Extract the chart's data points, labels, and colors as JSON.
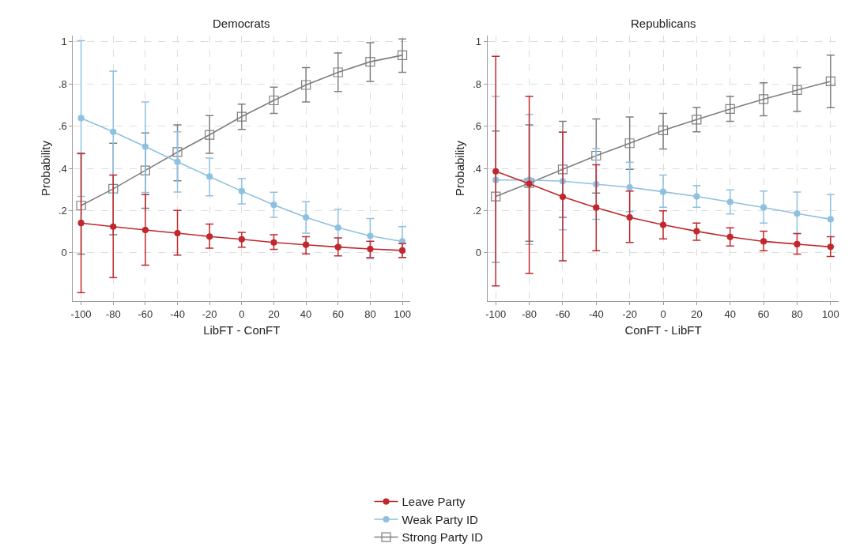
{
  "chart_data": [
    {
      "type": "line",
      "title": "Democrats",
      "xlabel": "LibFT - ConFT",
      "ylabel": "Probability",
      "x": [
        -100,
        -80,
        -60,
        -40,
        -20,
        0,
        20,
        40,
        60,
        80,
        100
      ],
      "xlim": [
        -105,
        105
      ],
      "xticks": [
        -100,
        -80,
        -60,
        -40,
        -20,
        0,
        20,
        40,
        60,
        80,
        100
      ],
      "ylim": [
        -0.23,
        1.03
      ],
      "yticks": [
        {
          "value": 0,
          "label": "0"
        },
        {
          "value": 0.2,
          "label": ".2"
        },
        {
          "value": 0.4,
          "label": ".4"
        },
        {
          "value": 0.6,
          "label": ".6"
        },
        {
          "value": 0.8,
          "label": ".8"
        },
        {
          "value": 1,
          "label": "1"
        }
      ],
      "grid": true,
      "legend": "bottom",
      "line_style": "solid",
      "series": [
        {
          "name": "Leave Party",
          "color": "#c0282d",
          "marker": "circle",
          "values": [
            0.141,
            0.124,
            0.108,
            0.093,
            0.077,
            0.064,
            0.049,
            0.038,
            0.027,
            0.018,
            0.011
          ],
          "errors": [
            [
              -0.189,
              0.471
            ],
            [
              -0.118,
              0.368
            ],
            [
              -0.059,
              0.276
            ],
            [
              -0.011,
              0.201
            ],
            [
              0.022,
              0.136
            ],
            [
              0.027,
              0.097
            ],
            [
              0.016,
              0.086
            ],
            [
              -0.005,
              0.076
            ],
            [
              -0.015,
              0.071
            ],
            [
              -0.022,
              0.055
            ],
            [
              -0.022,
              0.043
            ]
          ]
        },
        {
          "name": "Weak Party ID",
          "color": "#8ec1e0",
          "marker": "circle",
          "values": [
            0.638,
            0.573,
            0.503,
            0.431,
            0.361,
            0.292,
            0.227,
            0.168,
            0.119,
            0.08,
            0.054
          ],
          "errors": [
            [
              0.267,
              1.005
            ],
            [
              0.283,
              0.861
            ],
            [
              0.286,
              0.715
            ],
            [
              0.288,
              0.573
            ],
            [
              0.27,
              0.449
            ],
            [
              0.232,
              0.351
            ],
            [
              0.168,
              0.287
            ],
            [
              0.093,
              0.243
            ],
            [
              0.032,
              0.206
            ],
            [
              -0.029,
              0.162
            ],
            [
              -0.022,
              0.124
            ]
          ]
        },
        {
          "name": "Strong Party ID",
          "color": "#7f7f7f",
          "marker": "square",
          "values": [
            0.224,
            0.303,
            0.39,
            0.477,
            0.559,
            0.645,
            0.722,
            0.795,
            0.855,
            0.905,
            0.936
          ],
          "errors": [
            [
              -0.006,
              0.469
            ],
            [
              0.086,
              0.519
            ],
            [
              0.211,
              0.568
            ],
            [
              0.341,
              0.606
            ],
            [
              0.471,
              0.65
            ],
            [
              0.584,
              0.704
            ],
            [
              0.66,
              0.785
            ],
            [
              0.715,
              0.877
            ],
            [
              0.764,
              0.947
            ],
            [
              0.812,
              0.995
            ],
            [
              0.855,
              1.013
            ]
          ]
        }
      ]
    },
    {
      "type": "line",
      "title": "Republicans",
      "xlabel": "ConFT - LibFT",
      "ylabel": "Probability",
      "x": [
        -100,
        -80,
        -60,
        -40,
        -20,
        0,
        20,
        40,
        60,
        80,
        100
      ],
      "xlim": [
        -105,
        105
      ],
      "xticks": [
        -100,
        -80,
        -60,
        -40,
        -20,
        0,
        20,
        40,
        60,
        80,
        100
      ],
      "ylim": [
        -0.23,
        1.03
      ],
      "yticks": [
        {
          "value": 0,
          "label": "0"
        },
        {
          "value": 0.2,
          "label": ".2"
        },
        {
          "value": 0.4,
          "label": ".4"
        },
        {
          "value": 0.6,
          "label": ".6"
        },
        {
          "value": 0.8,
          "label": ".8"
        },
        {
          "value": 1,
          "label": "1"
        }
      ],
      "grid": true,
      "line_style": "solid",
      "series": [
        {
          "name": "Leave Party",
          "color": "#c0282d",
          "marker": "circle",
          "values": [
            0.386,
            0.327,
            0.265,
            0.214,
            0.168,
            0.132,
            0.102,
            0.075,
            0.054,
            0.041,
            0.028
          ],
          "errors": [
            [
              -0.157,
              0.931
            ],
            [
              -0.098,
              0.741
            ],
            [
              -0.038,
              0.571
            ],
            [
              0.01,
              0.417
            ],
            [
              0.049,
              0.292
            ],
            [
              0.066,
              0.199
            ],
            [
              0.059,
              0.141
            ],
            [
              0.032,
              0.118
            ],
            [
              0.01,
              0.102
            ],
            [
              -0.006,
              0.091
            ],
            [
              -0.017,
              0.076
            ]
          ]
        },
        {
          "name": "Weak Party ID",
          "color": "#8ec1e0",
          "marker": "circle",
          "values": [
            0.345,
            0.345,
            0.339,
            0.325,
            0.31,
            0.289,
            0.267,
            0.241,
            0.215,
            0.186,
            0.159
          ],
          "errors": [
            [
              -0.046,
              0.741
            ],
            [
              0.04,
              0.656
            ],
            [
              0.109,
              0.571
            ],
            [
              0.159,
              0.494
            ],
            [
              0.195,
              0.429
            ],
            [
              0.216,
              0.368
            ],
            [
              0.216,
              0.319
            ],
            [
              0.184,
              0.298
            ],
            [
              0.141,
              0.292
            ],
            [
              0.091,
              0.288
            ],
            [
              0.03,
              0.276
            ]
          ]
        },
        {
          "name": "Strong Party ID",
          "color": "#7f7f7f",
          "marker": "square",
          "values": [
            0.267,
            0.33,
            0.395,
            0.46,
            0.519,
            0.58,
            0.631,
            0.681,
            0.728,
            0.771,
            0.812
          ],
          "errors": [
            [
              -0.046,
              0.577
            ],
            [
              0.055,
              0.606
            ],
            [
              0.168,
              0.623
            ],
            [
              0.283,
              0.634
            ],
            [
              0.395,
              0.643
            ],
            [
              0.492,
              0.66
            ],
            [
              0.573,
              0.688
            ],
            [
              0.623,
              0.741
            ],
            [
              0.649,
              0.805
            ],
            [
              0.67,
              0.877
            ],
            [
              0.687,
              0.936
            ]
          ]
        }
      ]
    }
  ]
}
